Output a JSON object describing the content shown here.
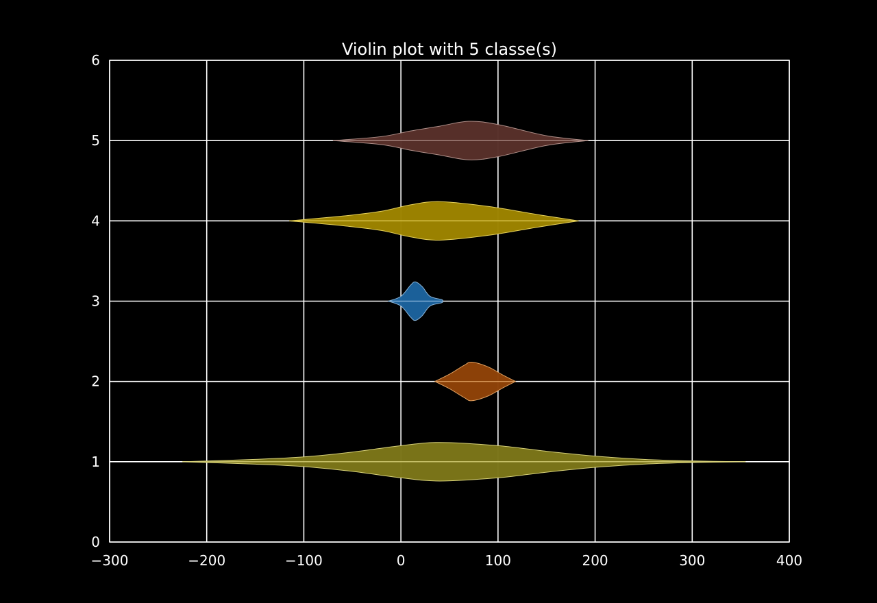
{
  "chart_data": {
    "type": "violin",
    "title": "Violin plot with 5 classe(s)",
    "xlabel": "",
    "ylabel": "",
    "xlim": [
      -300,
      400
    ],
    "ylim": [
      0,
      6
    ],
    "x_ticks": [
      -300,
      -200,
      -100,
      0,
      100,
      200,
      300,
      400
    ],
    "x_tick_labels": [
      "−300",
      "−200",
      "−100",
      "0",
      "100",
      "200",
      "300",
      "400"
    ],
    "y_ticks": [
      0,
      1,
      2,
      3,
      4,
      5,
      6
    ],
    "y_tick_labels": [
      "0",
      "1",
      "2",
      "3",
      "4",
      "5",
      "6"
    ],
    "grid": true,
    "orientation": "horizontal",
    "violins": [
      {
        "position": 1,
        "color": "#7b7518",
        "edge": "#d8d27a",
        "profile": [
          [
            -225,
            0
          ],
          [
            -150,
            0.03
          ],
          [
            -100,
            0.06
          ],
          [
            -50,
            0.12
          ],
          [
            0,
            0.2
          ],
          [
            40,
            0.24
          ],
          [
            100,
            0.2
          ],
          [
            150,
            0.13
          ],
          [
            200,
            0.07
          ],
          [
            250,
            0.03
          ],
          [
            300,
            0.01
          ],
          [
            355,
            0
          ]
        ]
      },
      {
        "position": 2,
        "color": "#8f4208",
        "edge": "#e0a060",
        "profile": [
          [
            35,
            0
          ],
          [
            50,
            0.09
          ],
          [
            65,
            0.2
          ],
          [
            73,
            0.24
          ],
          [
            90,
            0.18
          ],
          [
            105,
            0.08
          ],
          [
            118,
            0
          ]
        ]
      },
      {
        "position": 3,
        "color": "#1c629c",
        "edge": "#8ab4d8",
        "profile": [
          [
            -13,
            0
          ],
          [
            0,
            0.06
          ],
          [
            10,
            0.2
          ],
          [
            15,
            0.24
          ],
          [
            22,
            0.18
          ],
          [
            30,
            0.06
          ],
          [
            42,
            0.02
          ],
          [
            43,
            0
          ]
        ]
      },
      {
        "position": 4,
        "color": "#9d8400",
        "edge": "#e6d15a",
        "profile": [
          [
            -115,
            0
          ],
          [
            -60,
            0.06
          ],
          [
            -20,
            0.12
          ],
          [
            10,
            0.2
          ],
          [
            40,
            0.24
          ],
          [
            90,
            0.18
          ],
          [
            140,
            0.08
          ],
          [
            183,
            0
          ]
        ]
      },
      {
        "position": 5,
        "color": "#58302a",
        "edge": "#b0908a",
        "profile": [
          [
            -70,
            0
          ],
          [
            -20,
            0.05
          ],
          [
            10,
            0.12
          ],
          [
            40,
            0.18
          ],
          [
            70,
            0.24
          ],
          [
            100,
            0.2
          ],
          [
            150,
            0.06
          ],
          [
            193,
            0
          ]
        ]
      }
    ]
  }
}
